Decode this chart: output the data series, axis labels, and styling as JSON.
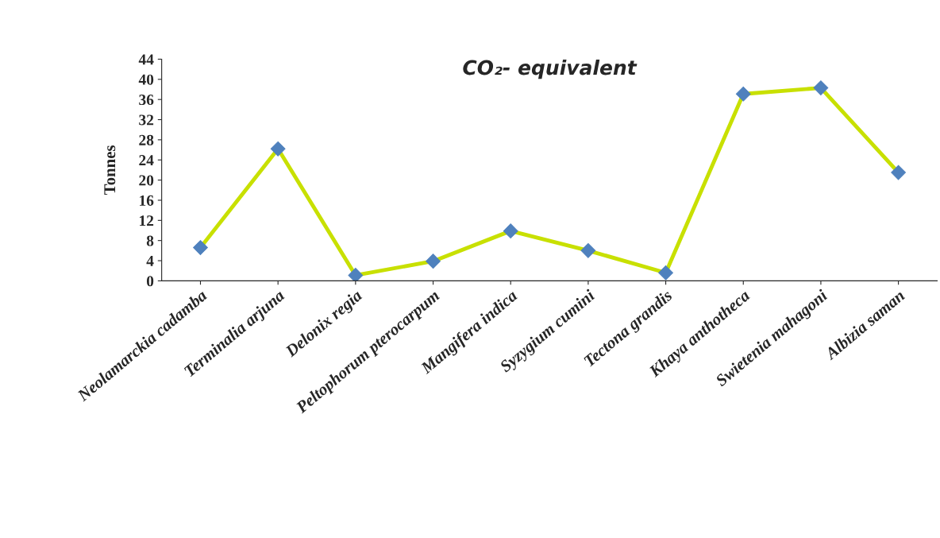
{
  "chart_data": {
    "type": "line",
    "title": "CO₂- equivalent",
    "ylabel": "Tonnes",
    "categories": [
      "Neolamarckia cadamba",
      "Terminalia arjuna",
      "Delonix regia",
      "Peltophorum pterocarpum",
      "Mangifera indica",
      "Syzygium cumini",
      "Tectona grandis",
      "Khaya anthotheca",
      "Swietenia mahagoni",
      "Albizia saman"
    ],
    "series": [
      {
        "color": "#c8e000",
        "values": [
          6.6,
          26.2,
          1.1,
          3.9,
          9.9,
          6.0,
          1.6,
          37.1,
          38.3,
          21.5
        ]
      }
    ],
    "ylim": [
      0,
      44
    ],
    "yticks": [
      0,
      4,
      8,
      12,
      16,
      20,
      24,
      28,
      32,
      36,
      40,
      44
    ],
    "marker": "diamond",
    "line_style": "solid",
    "grid": false,
    "legend": false
  }
}
